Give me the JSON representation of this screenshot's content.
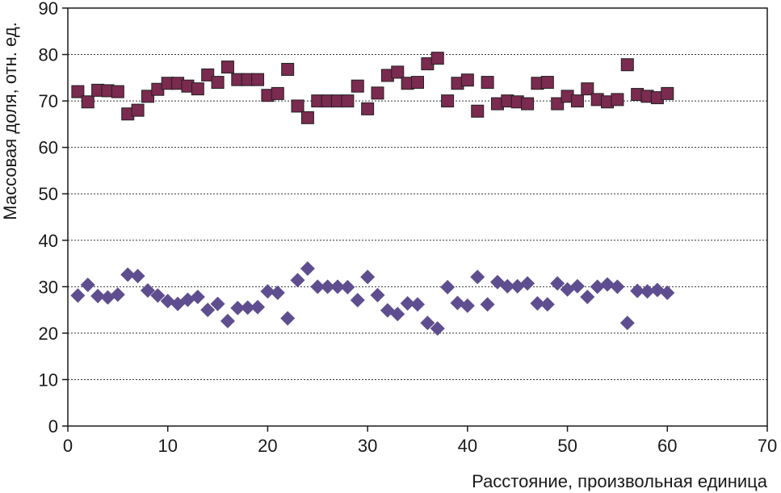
{
  "chart_data": {
    "type": "scatter",
    "title": "",
    "xlabel": "Расстояние, произвольная единица",
    "ylabel": "Массовая доля, отн. ед.",
    "xlim": [
      0,
      70
    ],
    "ylim": [
      0,
      90
    ],
    "xticks": [
      0,
      10,
      20,
      30,
      40,
      50,
      60,
      70
    ],
    "yticks": [
      0,
      10,
      20,
      30,
      40,
      50,
      60,
      70,
      80,
      90
    ],
    "grid": "horizontal-dashed",
    "legend": "none",
    "series": [
      {
        "name": "series-1",
        "marker": "square",
        "color": "#7b2a50",
        "x": [
          1,
          2,
          3,
          4,
          5,
          6,
          7,
          8,
          9,
          10,
          11,
          12,
          13,
          14,
          15,
          16,
          17,
          18,
          19,
          20,
          21,
          22,
          23,
          24,
          25,
          26,
          27,
          28,
          29,
          30,
          31,
          32,
          33,
          34,
          35,
          36,
          37,
          38,
          39,
          40,
          41,
          42,
          43,
          44,
          45,
          46,
          47,
          48,
          49,
          50,
          51,
          52,
          53,
          54,
          55,
          56,
          57,
          58,
          59,
          60
        ],
        "y": [
          72,
          69.8,
          72.3,
          72.2,
          72,
          67.2,
          68,
          71,
          72.5,
          73.8,
          73.8,
          73.2,
          72.6,
          75.6,
          74,
          77.3,
          74.6,
          74.6,
          74.6,
          71.2,
          71.6,
          76.8,
          68.9,
          66.4,
          70,
          70,
          70,
          70,
          73.2,
          68.3,
          71.7,
          75.5,
          76.2,
          73.8,
          74,
          78,
          79.2,
          70,
          73.8,
          74.5,
          67.8,
          74,
          69.4,
          70,
          69.8,
          69.4,
          73.8,
          74,
          69.4,
          71,
          70,
          72.6,
          70.3,
          69.8,
          70.3,
          77.8,
          71.4,
          71,
          70.7,
          71.6
        ]
      },
      {
        "name": "series-2",
        "marker": "diamond",
        "color": "#5f4e8f",
        "x": [
          1,
          2,
          3,
          4,
          5,
          6,
          7,
          8,
          9,
          10,
          11,
          12,
          13,
          14,
          15,
          16,
          17,
          18,
          19,
          20,
          21,
          22,
          23,
          24,
          25,
          26,
          27,
          28,
          29,
          30,
          31,
          32,
          33,
          34,
          35,
          36,
          37,
          38,
          39,
          40,
          41,
          42,
          43,
          44,
          45,
          46,
          47,
          48,
          49,
          50,
          51,
          52,
          53,
          54,
          55,
          56,
          57,
          58,
          59,
          60
        ],
        "y": [
          28.1,
          30.4,
          28,
          27.7,
          28.3,
          32.6,
          32.3,
          29.2,
          28.1,
          26.9,
          26.3,
          27.2,
          27.8,
          25,
          26.3,
          22.6,
          25.4,
          25.5,
          25.6,
          29,
          28.7,
          23.2,
          31.4,
          33.9,
          30,
          30,
          30,
          29.9,
          27.1,
          32.1,
          28.2,
          24.9,
          24.1,
          26.4,
          26.2,
          22.2,
          21,
          29.9,
          26.5,
          25.9,
          32.1,
          26.2,
          31,
          30.1,
          30.1,
          30.7,
          26.4,
          26.2,
          30.7,
          29.4,
          30.1,
          27.8,
          30,
          30.5,
          30,
          22.2,
          29.1,
          29,
          29.3,
          28.7
        ]
      }
    ]
  }
}
